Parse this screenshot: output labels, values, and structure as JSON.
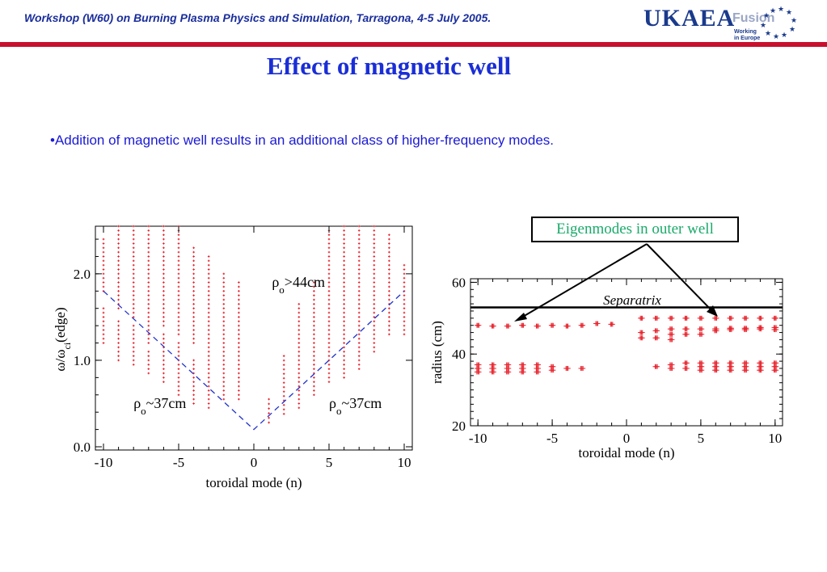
{
  "header": {
    "workshop_text": "Workshop (W60) on Burning Plasma Physics and Simulation, Tarragona, 4-5 July 2005.",
    "logo_main": "UKAEA",
    "logo_fusion": "Fusion",
    "logo_sub1": "Working",
    "logo_sub2": "in Europe"
  },
  "slide": {
    "title": "Effect of magnetic well",
    "bullet": "•Addition of magnetic well results in an additional class of higher-frequency modes.",
    "callout": "Eigenmodes in outer well"
  },
  "colors": {
    "title": "#1a2ed6",
    "header": "#1a2e9c",
    "rule": "#c8102e",
    "points": "#e8202a",
    "dashed": "#2233cc",
    "callout": "#1aaa6a"
  },
  "chart_data": [
    {
      "type": "scatter",
      "xlabel": "toroidal mode (n)",
      "ylabel_parts": [
        "ω/ω",
        "ci",
        "(edge)"
      ],
      "xlim": [
        -10,
        10
      ],
      "ylim": [
        0,
        2.55
      ],
      "x_ticks": [
        -10,
        -5,
        0,
        5,
        10
      ],
      "x_tick_labels": [
        "-10",
        "-5",
        "0",
        "5",
        "10"
      ],
      "y_ticks": [
        0,
        1,
        2
      ],
      "y_tick_labels": [
        "0.0",
        "1.0",
        "2.0"
      ],
      "annotations": [
        {
          "parts": [
            "ρ",
            "o",
            ">44cm"
          ],
          "x": 1.2,
          "y": 1.85
        },
        {
          "parts": [
            "ρ",
            "o",
            "~37cm"
          ],
          "x": -8.0,
          "y": 0.45
        },
        {
          "parts": [
            "ρ",
            "o",
            "~37cm"
          ],
          "x": 5.0,
          "y": 0.45
        }
      ],
      "dashed_line": {
        "x": [
          -10,
          0,
          10
        ],
        "y": [
          1.8,
          0.2,
          1.8
        ]
      },
      "columns": [
        {
          "n": -10,
          "ranges": [
            [
              1.2,
              1.6
            ],
            [
              1.8,
              2.4
            ]
          ]
        },
        {
          "n": -9,
          "ranges": [
            [
              1.0,
              1.45
            ],
            [
              1.6,
              2.55
            ]
          ]
        },
        {
          "n": -8,
          "ranges": [
            [
              0.95,
              1.4
            ],
            [
              1.5,
              2.55
            ]
          ]
        },
        {
          "n": -7,
          "ranges": [
            [
              0.85,
              1.1
            ],
            [
              1.2,
              2.55
            ]
          ]
        },
        {
          "n": -6,
          "ranges": [
            [
              0.75,
              1.3
            ],
            [
              1.4,
              2.55
            ]
          ]
        },
        {
          "n": -5,
          "ranges": [
            [
              0.6,
              1.2
            ],
            [
              1.3,
              2.55
            ]
          ]
        },
        {
          "n": -4,
          "ranges": [
            [
              0.5,
              1.0
            ],
            [
              1.2,
              2.3
            ]
          ]
        },
        {
          "n": -3,
          "ranges": [
            [
              0.45,
              2.2
            ]
          ]
        },
        {
          "n": -2,
          "ranges": [
            [
              0.55,
              2.0
            ]
          ]
        },
        {
          "n": -1,
          "ranges": [
            [
              0.55,
              1.9
            ]
          ]
        },
        {
          "n": 1,
          "ranges": [
            [
              0.28,
              0.55
            ]
          ]
        },
        {
          "n": 2,
          "ranges": [
            [
              0.38,
              1.05
            ]
          ]
        },
        {
          "n": 3,
          "ranges": [
            [
              0.45,
              1.65
            ]
          ]
        },
        {
          "n": 4,
          "ranges": [
            [
              0.6,
              1.9
            ]
          ]
        },
        {
          "n": 5,
          "ranges": [
            [
              0.75,
              2.5
            ]
          ]
        },
        {
          "n": 6,
          "ranges": [
            [
              0.8,
              2.55
            ]
          ]
        },
        {
          "n": 7,
          "ranges": [
            [
              0.9,
              2.55
            ]
          ]
        },
        {
          "n": 8,
          "ranges": [
            [
              1.1,
              2.55
            ]
          ]
        },
        {
          "n": 9,
          "ranges": [
            [
              1.3,
              2.45
            ]
          ]
        },
        {
          "n": 10,
          "ranges": [
            [
              1.3,
              2.1
            ]
          ]
        }
      ]
    },
    {
      "type": "scatter",
      "xlabel": "toroidal mode (n)",
      "ylabel": "radius (cm)",
      "xlim": [
        -10.5,
        10.5
      ],
      "ylim": [
        20,
        61
      ],
      "x_ticks": [
        -10,
        -5,
        0,
        5,
        10
      ],
      "x_tick_labels": [
        "-10",
        "-5",
        "0",
        "5",
        "10"
      ],
      "y_ticks": [
        20,
        40,
        60
      ],
      "y_tick_labels": [
        "20",
        "40",
        "60"
      ],
      "separatrix": {
        "label": "Separatrix",
        "radius": 53
      },
      "outer_well_points": [
        {
          "n": -10,
          "r": 48
        },
        {
          "n": -9,
          "r": 47.8
        },
        {
          "n": -8,
          "r": 47.8
        },
        {
          "n": -7,
          "r": 48
        },
        {
          "n": -6,
          "r": 47.8
        },
        {
          "n": -5,
          "r": 48
        },
        {
          "n": -4,
          "r": 47.8
        },
        {
          "n": -3,
          "r": 48
        },
        {
          "n": -2,
          "r": 48.5
        },
        {
          "n": -1,
          "r": 48.3
        },
        {
          "n": 1,
          "r": 50
        },
        {
          "n": 2,
          "r": 50
        },
        {
          "n": 3,
          "r": 50
        },
        {
          "n": 4,
          "r": 50
        },
        {
          "n": 5,
          "r": 50
        },
        {
          "n": 6,
          "r": 50
        },
        {
          "n": 7,
          "r": 50
        },
        {
          "n": 8,
          "r": 50
        },
        {
          "n": 9,
          "r": 50
        },
        {
          "n": 10,
          "r": 50
        }
      ],
      "mid_points": [
        {
          "n": 1,
          "rs": [
            44.5,
            46
          ]
        },
        {
          "n": 2,
          "rs": [
            44.5,
            46.5
          ]
        },
        {
          "n": 3,
          "rs": [
            44,
            45.5,
            47
          ]
        },
        {
          "n": 4,
          "rs": [
            45.5,
            47
          ]
        },
        {
          "n": 5,
          "rs": [
            45.5,
            47
          ]
        },
        {
          "n": 6,
          "rs": [
            46.5,
            47
          ]
        },
        {
          "n": 7,
          "rs": [
            46.8,
            47.2
          ]
        },
        {
          "n": 8,
          "rs": [
            46.8,
            47.2
          ]
        },
        {
          "n": 9,
          "rs": [
            47,
            47.4
          ]
        },
        {
          "n": 10,
          "rs": [
            46.8,
            47.4
          ]
        }
      ],
      "inner_points": [
        {
          "n": -10,
          "rs": [
            35,
            36,
            37
          ]
        },
        {
          "n": -9,
          "rs": [
            35,
            36,
            37
          ]
        },
        {
          "n": -8,
          "rs": [
            35,
            36,
            37
          ]
        },
        {
          "n": -7,
          "rs": [
            35,
            36,
            37
          ]
        },
        {
          "n": -6,
          "rs": [
            35,
            36,
            37
          ]
        },
        {
          "n": -5,
          "rs": [
            35.5,
            36.5
          ]
        },
        {
          "n": -4,
          "rs": [
            36
          ]
        },
        {
          "n": -3,
          "rs": [
            36
          ]
        },
        {
          "n": 2,
          "rs": [
            36.5
          ]
        },
        {
          "n": 3,
          "rs": [
            36,
            37
          ]
        },
        {
          "n": 4,
          "rs": [
            36,
            37.5
          ]
        },
        {
          "n": 5,
          "rs": [
            35.5,
            36.5,
            37.5
          ]
        },
        {
          "n": 6,
          "rs": [
            35.5,
            36.5,
            37.5
          ]
        },
        {
          "n": 7,
          "rs": [
            35.5,
            36.5,
            37.5
          ]
        },
        {
          "n": 8,
          "rs": [
            35.5,
            36.5,
            37.5
          ]
        },
        {
          "n": 9,
          "rs": [
            35.5,
            36.5,
            37.5
          ]
        },
        {
          "n": 10,
          "rs": [
            35.5,
            36.5,
            37.5
          ]
        }
      ]
    }
  ]
}
